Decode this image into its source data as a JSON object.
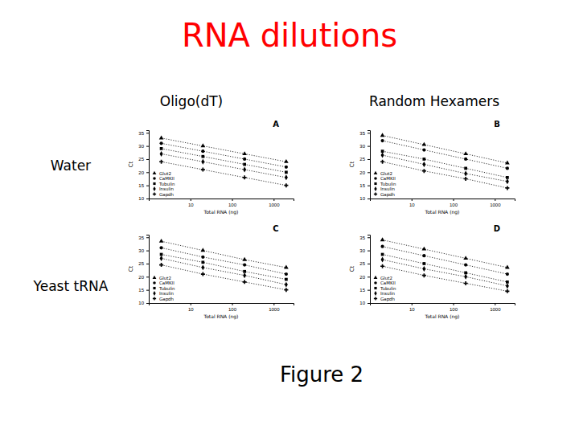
{
  "slide": {
    "title": "RNA dilutions",
    "columns": [
      "Oligo(dT)",
      "Random Hexamers"
    ],
    "rows": [
      "Water",
      "Yeast tRNA"
    ],
    "caption": "Figure 2"
  },
  "chart_data": [
    {
      "type": "line",
      "title": "A",
      "x_label": "Total RNA (ng)",
      "y_label": "Ct",
      "log": "x",
      "x": [
        2,
        20,
        200,
        2000
      ],
      "xlim": [
        1,
        3000
      ],
      "xticks": [
        10,
        100,
        1000
      ],
      "ylim": [
        10,
        36
      ],
      "yticks": [
        10,
        15,
        20,
        25,
        30,
        35
      ],
      "legend": "bottom-left",
      "line_style": "dotted",
      "series": [
        {
          "name": "Glut2",
          "color": "#000000",
          "marker": "triangle",
          "values": [
            33,
            30,
            27,
            24
          ]
        },
        {
          "name": "CaMKII",
          "color": "#000000",
          "marker": "circle",
          "values": [
            31,
            28,
            25,
            22
          ]
        },
        {
          "name": "Tubulin",
          "color": "#000000",
          "marker": "square",
          "values": [
            29,
            26,
            23,
            20
          ]
        },
        {
          "name": "Insulin",
          "color": "#000000",
          "marker": "diamond",
          "values": [
            27,
            24,
            21,
            18
          ]
        },
        {
          "name": "Gapdh",
          "color": "#000000",
          "marker": "cross",
          "values": [
            24,
            21,
            18,
            15
          ]
        }
      ]
    },
    {
      "type": "line",
      "title": "B",
      "x_label": "Total RNA (ng)",
      "y_label": "Ct",
      "log": "x",
      "x": [
        2,
        20,
        200,
        2000
      ],
      "xlim": [
        1,
        3000
      ],
      "xticks": [
        10,
        100,
        1000
      ],
      "ylim": [
        10,
        36
      ],
      "yticks": [
        10,
        15,
        20,
        25,
        30,
        35
      ],
      "legend": "bottom-left",
      "line_style": "dotted",
      "series": [
        {
          "name": "Glut2",
          "color": "#000000",
          "marker": "triangle",
          "values": [
            34,
            30.5,
            27,
            23.5
          ]
        },
        {
          "name": "CaMKII",
          "color": "#000000",
          "marker": "circle",
          "values": [
            32,
            28.5,
            25,
            21.5
          ]
        },
        {
          "name": "Tubulin",
          "color": "#000000",
          "marker": "square",
          "values": [
            28,
            25,
            21.5,
            18
          ]
        },
        {
          "name": "Insulin",
          "color": "#000000",
          "marker": "diamond",
          "values": [
            26.5,
            23,
            19.5,
            16.5
          ]
        },
        {
          "name": "Gapdh",
          "color": "#000000",
          "marker": "cross",
          "values": [
            24,
            20.5,
            17.5,
            14
          ]
        }
      ]
    },
    {
      "type": "line",
      "title": "C",
      "x_label": "Total RNA (ng)",
      "y_label": "Ct",
      "log": "x",
      "x": [
        2,
        20,
        200,
        2000
      ],
      "xlim": [
        1,
        3000
      ],
      "xticks": [
        10,
        100,
        1000
      ],
      "ylim": [
        10,
        36
      ],
      "yticks": [
        10,
        15,
        20,
        25,
        30,
        35
      ],
      "legend": "bottom-left",
      "line_style": "dotted",
      "series": [
        {
          "name": "Glut2",
          "color": "#000000",
          "marker": "triangle",
          "values": [
            33.5,
            30,
            26.5,
            23.5
          ]
        },
        {
          "name": "CaMKII",
          "color": "#000000",
          "marker": "circle",
          "values": [
            31,
            27.5,
            24.5,
            21
          ]
        },
        {
          "name": "Tubulin",
          "color": "#000000",
          "marker": "square",
          "values": [
            28.5,
            25.5,
            22,
            19
          ]
        },
        {
          "name": "Insulin",
          "color": "#000000",
          "marker": "diamond",
          "values": [
            27,
            23.5,
            20.5,
            17
          ]
        },
        {
          "name": "Gapdh",
          "color": "#000000",
          "marker": "cross",
          "values": [
            24.5,
            21,
            18,
            15
          ]
        }
      ]
    },
    {
      "type": "line",
      "title": "D",
      "x_label": "Total RNA (ng)",
      "y_label": "Ct",
      "log": "x",
      "x": [
        2,
        20,
        200,
        2000
      ],
      "xlim": [
        1,
        3000
      ],
      "xticks": [
        10,
        100,
        1000
      ],
      "ylim": [
        10,
        36
      ],
      "yticks": [
        10,
        15,
        20,
        25,
        30,
        35
      ],
      "legend": "bottom-left",
      "line_style": "dotted",
      "series": [
        {
          "name": "Glut2",
          "color": "#000000",
          "marker": "triangle",
          "values": [
            34,
            30.5,
            27,
            23.5
          ]
        },
        {
          "name": "CaMKII",
          "color": "#000000",
          "marker": "circle",
          "values": [
            31.5,
            28,
            24.5,
            21
          ]
        },
        {
          "name": "Tubulin",
          "color": "#000000",
          "marker": "square",
          "values": [
            28.5,
            25,
            21.5,
            18
          ]
        },
        {
          "name": "Insulin",
          "color": "#000000",
          "marker": "diamond",
          "values": [
            26.5,
            23,
            20,
            16.5
          ]
        },
        {
          "name": "Gapdh",
          "color": "#000000",
          "marker": "cross",
          "values": [
            24,
            20.5,
            17.5,
            14.5
          ]
        }
      ]
    }
  ]
}
